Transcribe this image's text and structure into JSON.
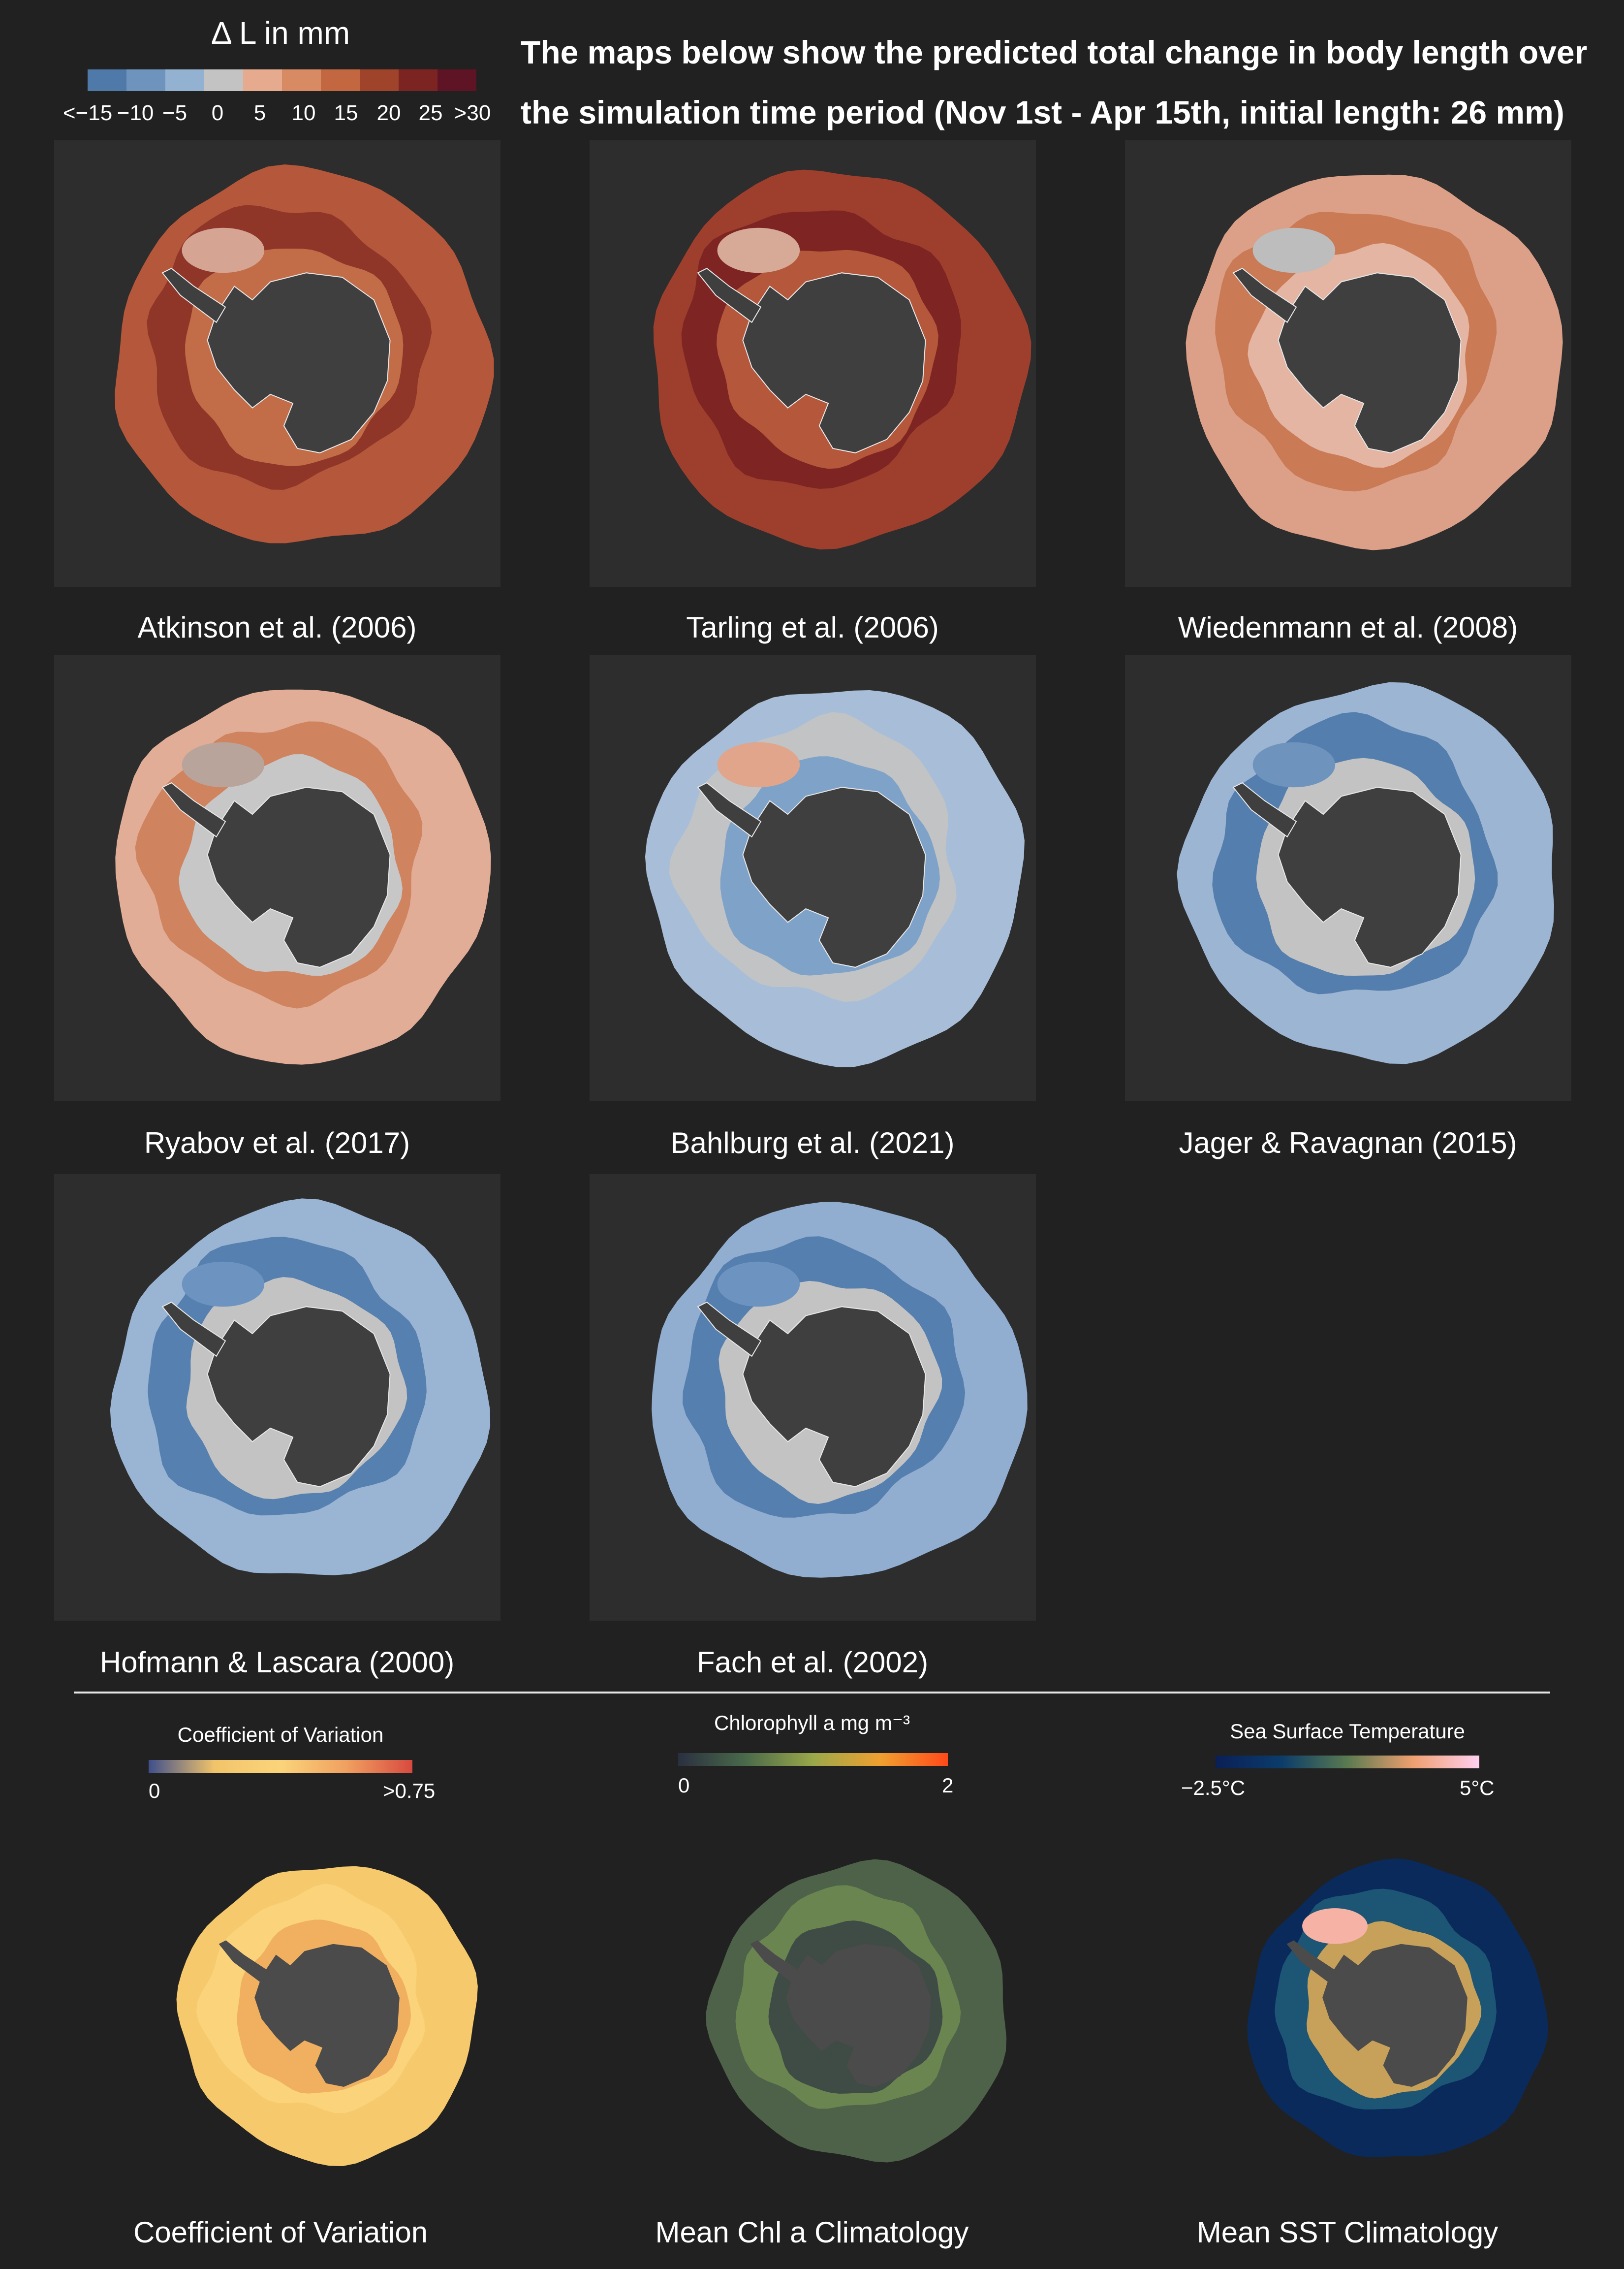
{
  "legend": {
    "title": "Δ L in mm",
    "ticks": [
      "<−15",
      "−10",
      "−5",
      "0",
      "5",
      "10",
      "15",
      "20",
      "25",
      ">30"
    ],
    "colors": [
      "#4f79a8",
      "#6e93bd",
      "#93b1d1",
      "#c3c3c3",
      "#e6ab8f",
      "#d88a63",
      "#c26740",
      "#a0432b",
      "#7c2422",
      "#5e1424"
    ]
  },
  "header": {
    "line1": "The maps below show the predicted total change in body length over",
    "line2": "the simulation time period (Nov 1st - Apr 15th, initial length: 26 mm)"
  },
  "maps": [
    {
      "caption": "Atkinson et al. (2006)",
      "colors": [
        "#b5573a",
        "#8c3328",
        "#c26d48",
        "#d5a493"
      ]
    },
    {
      "caption": "Tarling et al. (2006)",
      "colors": [
        "#9e3f2d",
        "#7a2222",
        "#b5573a",
        "#d7aa98"
      ]
    },
    {
      "caption": "Wiedenmann et al. (2008)",
      "colors": [
        "#dca088",
        "#c97651",
        "#e3b5a2",
        "#bdbdbd"
      ]
    },
    {
      "caption": "Ryabov et al. (2017)",
      "colors": [
        "#e2ad97",
        "#cd7e59",
        "#c7c7c7",
        "#b9a49c"
      ]
    },
    {
      "caption": "Bahlburg et al. (2021)",
      "colors": [
        "#a8bed8",
        "#c3c3c3",
        "#7fa2c9",
        "#e0a58a"
      ]
    },
    {
      "caption": "Jager & Ravagnan (2015)",
      "colors": [
        "#9cb5d3",
        "#4c78a8",
        "#c3c3c3",
        "#6e93bd"
      ]
    },
    {
      "caption": "Hofmann & Lascara (2000)",
      "colors": [
        "#9ab4d3",
        "#4f7aab",
        "#c3c3c3",
        "#6d94c0"
      ]
    },
    {
      "caption": "Fach et al. (2002)",
      "colors": [
        "#91aed0",
        "#4f7aab",
        "#c3c3c3",
        "#6d94c0"
      ]
    }
  ],
  "bottom": [
    {
      "legend_title": "Coefficient of Variation",
      "tick_left": "0",
      "tick_right": ">0.75",
      "gradient": [
        "#3f4f8c",
        "#f2c46a",
        "#fbd47a",
        "#f0a060",
        "#d84a3f"
      ],
      "caption": "Coefficient of Variation",
      "colors": [
        "#f6c96d",
        "#fbd47c",
        "#f0b060"
      ]
    },
    {
      "legend_title": "Chlorophyll a mg m⁻³",
      "tick_left": "0",
      "tick_right": "2",
      "gradient": [
        "#2a3040",
        "#4a6a4a",
        "#9aa84a",
        "#f0a030",
        "#ff4a1a"
      ],
      "caption": "Mean Chl a Climatology",
      "colors": [
        "#4d6248",
        "#6f8a52",
        "#3f4c45"
      ]
    },
    {
      "legend_title": "Sea Surface Temperature",
      "tick_left": "−2.5°C",
      "tick_right": "5°C",
      "gradient": [
        "#0b1f55",
        "#0b3c6a",
        "#5a7a50",
        "#f0a070",
        "#ffd0f0"
      ],
      "caption": "Mean SST Climatology",
      "colors": [
        "#0a2a5c",
        "#1f5a78",
        "#c7a05a",
        "#f6b3a5"
      ]
    }
  ]
}
